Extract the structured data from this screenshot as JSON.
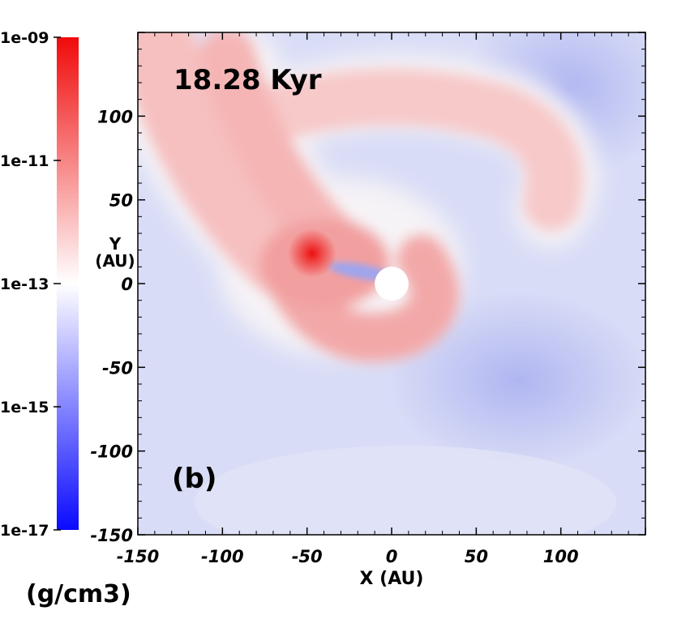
{
  "chart_data": {
    "type": "heatmap",
    "panel_label": "(b)",
    "time_label": "18.28 Kyr",
    "xlabel": "X (AU)",
    "ylabel": "Y\n(AU)",
    "xlim": [
      -150,
      150
    ],
    "ylim": [
      -150,
      150
    ],
    "x_ticks": [
      -150,
      -100,
      -50,
      0,
      50,
      100
    ],
    "y_ticks": [
      -150,
      -100,
      -50,
      0,
      50,
      100
    ],
    "colorbar": {
      "label": "(g/cm3)",
      "scale": "log",
      "range": [
        1e-17,
        1e-09
      ],
      "tick_values": [
        1e-09,
        1e-11,
        1e-13,
        1e-15,
        1e-17
      ],
      "tick_labels": [
        "1e-09",
        "1e-11",
        "1e-13",
        "1e-15",
        "1e-17"
      ],
      "colors": {
        "low": "#0a0aff",
        "mid": "#ffffff",
        "high": "#f00a0a"
      }
    },
    "features": {
      "central_sink": {
        "x": 0,
        "y": 0,
        "radius_au": 10,
        "color": "#ffffff"
      },
      "density_peak": {
        "x": -47,
        "y": 18,
        "log_density": -11.2
      },
      "background_log_density": -14.0
    }
  }
}
